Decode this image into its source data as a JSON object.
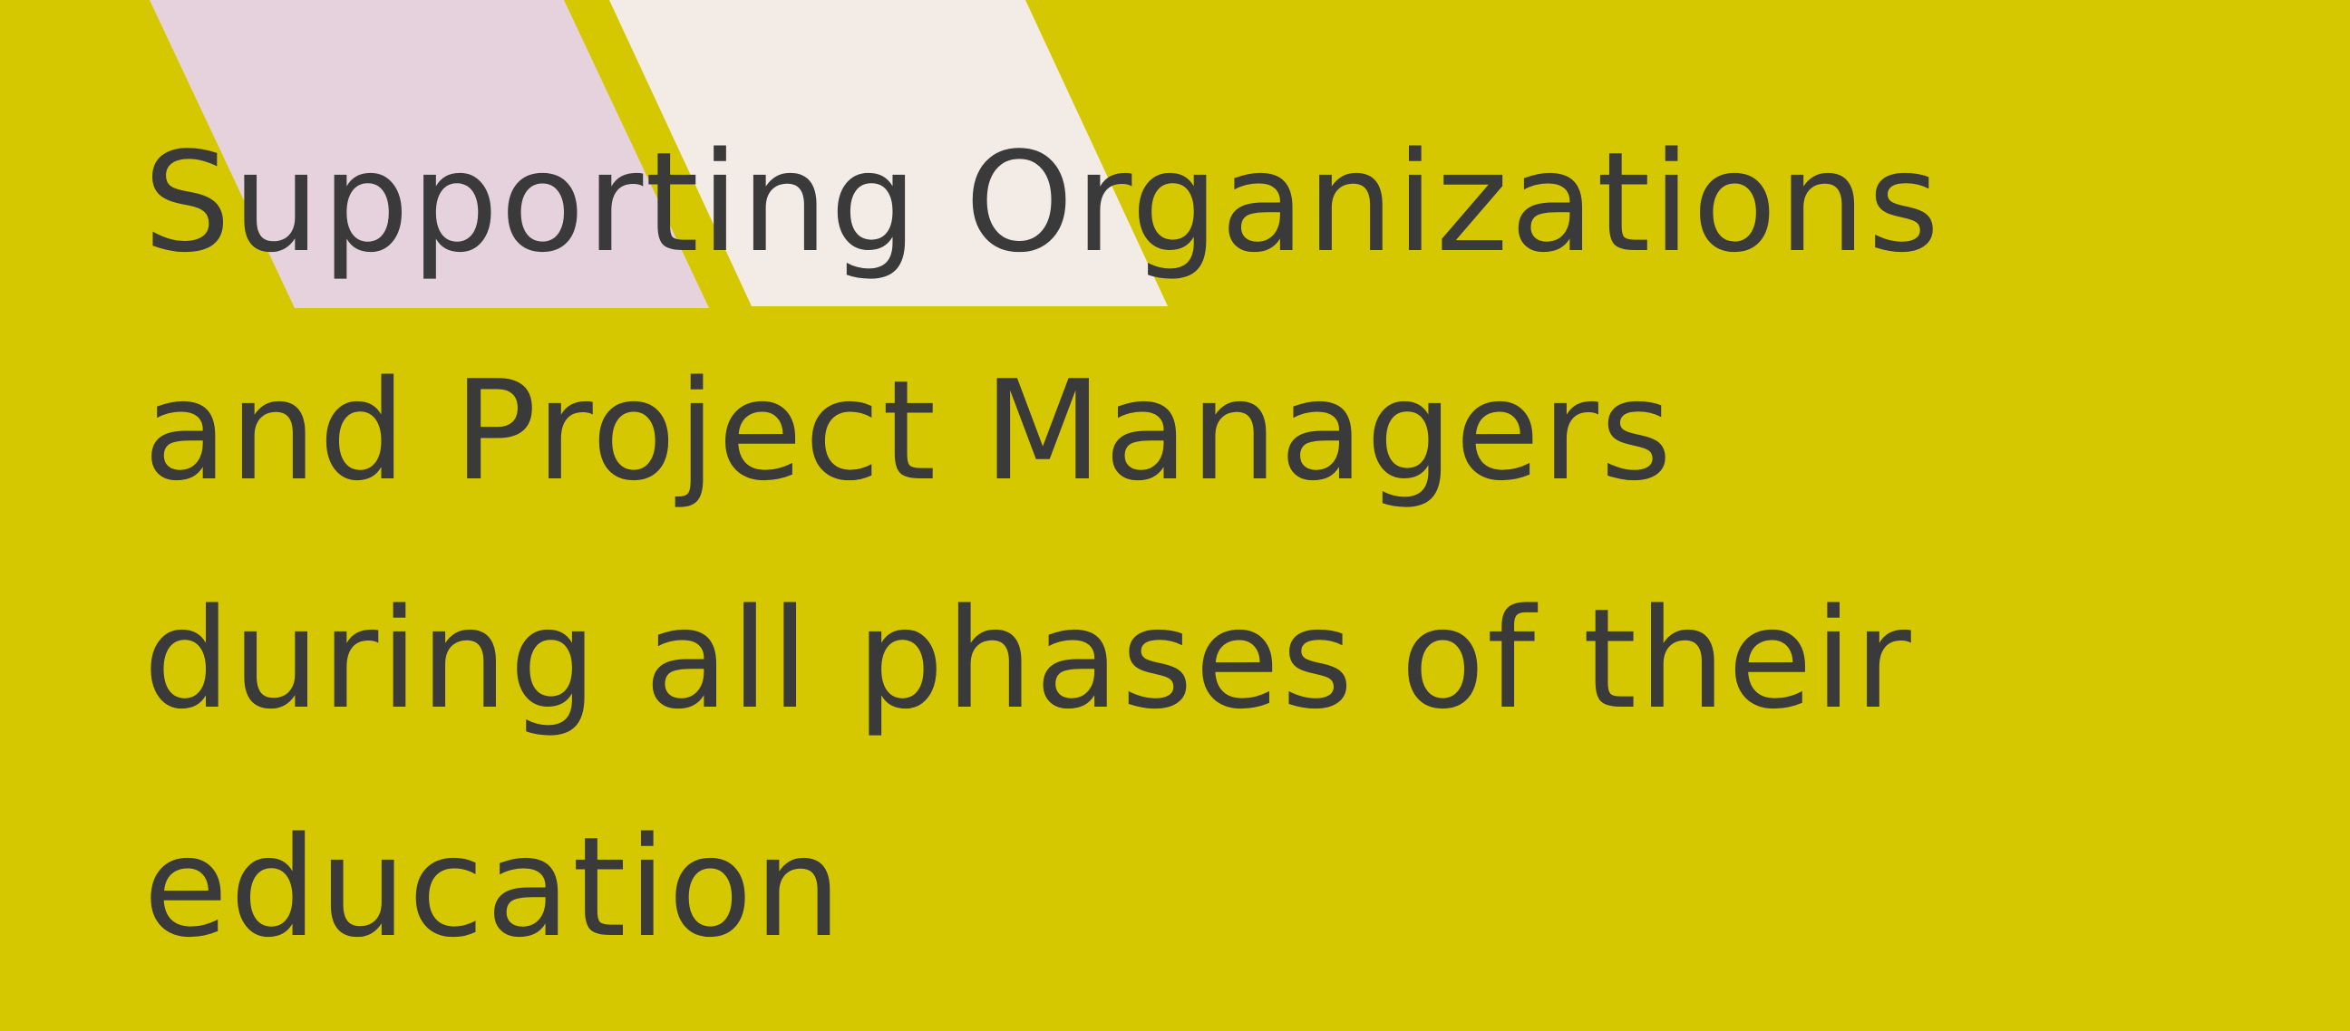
{
  "colors": {
    "background": "#d6c800",
    "shape_left": "#e6d2dc",
    "shape_right": "#f3ebe6",
    "text": "#3a3a3a"
  },
  "headline": {
    "lines": [
      "Supporting Organizations",
      "and Project Managers",
      "during all phases of their",
      "education"
    ]
  }
}
